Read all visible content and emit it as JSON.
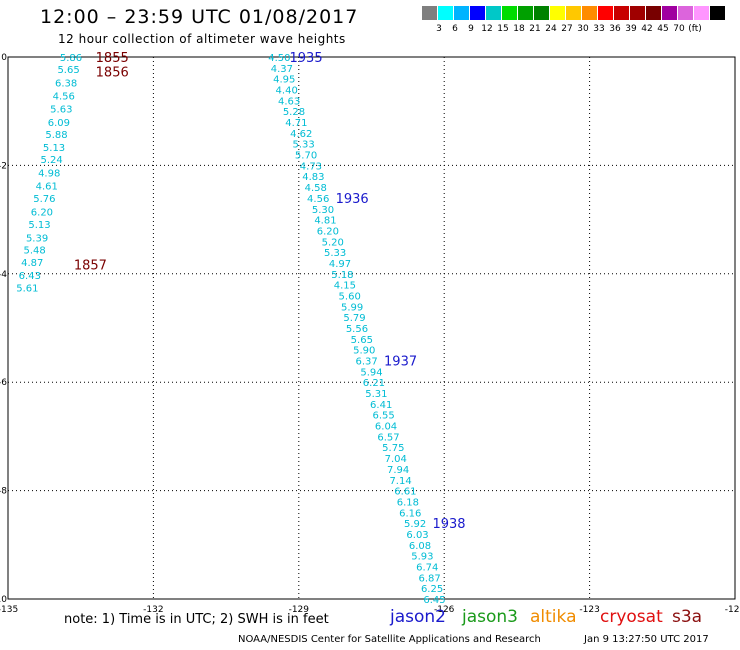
{
  "header": {
    "title": "12:00 – 23:59 UTC 01/08/2017",
    "subtitle": "12 hour collection of altimeter wave heights"
  },
  "colorbar": {
    "colors": [
      "#7f7f7f",
      "#00ffff",
      "#00b4ff",
      "#0000ff",
      "#00c8c8",
      "#00dc00",
      "#00a000",
      "#008200",
      "#ffff00",
      "#ffc800",
      "#ff8c00",
      "#ff0000",
      "#c80000",
      "#a00000",
      "#780000",
      "#a000a0",
      "#dc64dc",
      "#ff96ff",
      "#000000"
    ],
    "labels": [
      "3",
      "6",
      "9",
      "12",
      "15",
      "18",
      "21",
      "24",
      "27",
      "30",
      "33",
      "36",
      "39",
      "42",
      "45",
      "70",
      "(ft)"
    ]
  },
  "chart_data": {
    "type": "scatter",
    "title": "12 hour collection of altimeter wave heights",
    "xlim": [
      -135,
      -120
    ],
    "ylim": [
      -10,
      0
    ],
    "xticks": [
      "-135",
      "-132",
      "-129",
      "-126",
      "-123",
      "-120"
    ],
    "yticks": [
      "0",
      "-2",
      "-4",
      "-6",
      "-8",
      "-10"
    ],
    "grid": true,
    "value_color": "#00bcd4",
    "tracks": [
      {
        "satellite": "altika",
        "points": [
          {
            "lon": -133.7,
            "lat": 0.0,
            "swh": "5.86"
          },
          {
            "lon": -133.75,
            "lat": -0.22,
            "swh": "5.65"
          },
          {
            "lon": -133.8,
            "lat": -0.47,
            "swh": "6.38"
          },
          {
            "lon": -133.85,
            "lat": -0.71,
            "swh": "4.56"
          },
          {
            "lon": -133.9,
            "lat": -0.95,
            "swh": "5.63"
          },
          {
            "lon": -133.95,
            "lat": -1.2,
            "swh": "6.09"
          },
          {
            "lon": -134.0,
            "lat": -1.42,
            "swh": "5.88"
          },
          {
            "lon": -134.05,
            "lat": -1.66,
            "swh": "5.13"
          },
          {
            "lon": -134.1,
            "lat": -1.88,
            "swh": "5.24"
          },
          {
            "lon": -134.15,
            "lat": -2.13,
            "swh": "4.98"
          },
          {
            "lon": -134.2,
            "lat": -2.37,
            "swh": "4.61"
          },
          {
            "lon": -134.25,
            "lat": -2.6,
            "swh": "5.76"
          },
          {
            "lon": -134.3,
            "lat": -2.85,
            "swh": "6.20"
          },
          {
            "lon": -134.35,
            "lat": -3.08,
            "swh": "5.13"
          },
          {
            "lon": -134.4,
            "lat": -3.33,
            "swh": "5.39"
          },
          {
            "lon": -134.45,
            "lat": -3.55,
            "swh": "5.48"
          },
          {
            "lon": -134.5,
            "lat": -3.78,
            "swh": "4.87"
          },
          {
            "lon": -134.55,
            "lat": -4.02,
            "swh": "6.43"
          },
          {
            "lon": -134.6,
            "lat": -4.25,
            "swh": "5.61"
          }
        ],
        "time_labels": [
          {
            "text": "1855",
            "lon": -132.85,
            "lat": 0.0
          },
          {
            "text": "1856",
            "lon": -132.85,
            "lat": -0.27
          },
          {
            "text": "1857",
            "lon": -133.3,
            "lat": -3.83
          }
        ]
      },
      {
        "satellite": "jason2",
        "points": [
          {
            "lon": -129.4,
            "lat": 0.0,
            "swh": "4.50"
          },
          {
            "lon": -129.35,
            "lat": -0.2,
            "swh": "4.37"
          },
          {
            "lon": -129.3,
            "lat": -0.4,
            "swh": "4.95"
          },
          {
            "lon": -129.25,
            "lat": -0.6,
            "swh": "4.40"
          },
          {
            "lon": -129.2,
            "lat": -0.8,
            "swh": "4.63"
          },
          {
            "lon": -129.1,
            "lat": -1.0,
            "swh": "5.28"
          },
          {
            "lon": -129.05,
            "lat": -1.2,
            "swh": "4.71"
          },
          {
            "lon": -128.95,
            "lat": -1.4,
            "swh": "4.62"
          },
          {
            "lon": -128.9,
            "lat": -1.6,
            "swh": "5.33"
          },
          {
            "lon": -128.85,
            "lat": -1.8,
            "swh": "5.70"
          },
          {
            "lon": -128.75,
            "lat": -2.0,
            "swh": "4.73"
          },
          {
            "lon": -128.7,
            "lat": -2.2,
            "swh": "4.83"
          },
          {
            "lon": -128.65,
            "lat": -2.4,
            "swh": "4.58"
          },
          {
            "lon": -128.6,
            "lat": -2.6,
            "swh": "4.56"
          },
          {
            "lon": -128.5,
            "lat": -2.8,
            "swh": "5.30"
          },
          {
            "lon": -128.45,
            "lat": -3.0,
            "swh": "4.81"
          },
          {
            "lon": -128.4,
            "lat": -3.2,
            "swh": "6.20"
          },
          {
            "lon": -128.3,
            "lat": -3.4,
            "swh": "5.20"
          },
          {
            "lon": -128.25,
            "lat": -3.6,
            "swh": "5.33"
          },
          {
            "lon": -128.15,
            "lat": -3.8,
            "swh": "4.97"
          },
          {
            "lon": -128.1,
            "lat": -4.0,
            "swh": "5.18"
          },
          {
            "lon": -128.05,
            "lat": -4.2,
            "swh": "4.15"
          },
          {
            "lon": -127.95,
            "lat": -4.4,
            "swh": "5.60"
          },
          {
            "lon": -127.9,
            "lat": -4.6,
            "swh": "5.99"
          },
          {
            "lon": -127.85,
            "lat": -4.8,
            "swh": "5.79"
          },
          {
            "lon": -127.8,
            "lat": -5.0,
            "swh": "5.56"
          },
          {
            "lon": -127.7,
            "lat": -5.2,
            "swh": "5.65"
          },
          {
            "lon": -127.65,
            "lat": -5.4,
            "swh": "5.90"
          },
          {
            "lon": -127.6,
            "lat": -5.6,
            "swh": "6.37"
          },
          {
            "lon": -127.5,
            "lat": -5.8,
            "swh": "5.94"
          },
          {
            "lon": -127.45,
            "lat": -6.0,
            "swh": "6.21"
          },
          {
            "lon": -127.4,
            "lat": -6.2,
            "swh": "5.31"
          },
          {
            "lon": -127.3,
            "lat": -6.4,
            "swh": "6.41"
          },
          {
            "lon": -127.25,
            "lat": -6.6,
            "swh": "6.55"
          },
          {
            "lon": -127.2,
            "lat": -6.8,
            "swh": "6.04"
          },
          {
            "lon": -127.15,
            "lat": -7.0,
            "swh": "6.57"
          },
          {
            "lon": -127.05,
            "lat": -7.2,
            "swh": "5.75"
          },
          {
            "lon": -127.0,
            "lat": -7.4,
            "swh": "7.04"
          },
          {
            "lon": -126.95,
            "lat": -7.6,
            "swh": "7.94"
          },
          {
            "lon": -126.9,
            "lat": -7.8,
            "swh": "7.14"
          },
          {
            "lon": -126.8,
            "lat": -8.0,
            "swh": "6.61"
          },
          {
            "lon": -126.75,
            "lat": -8.2,
            "swh": "6.18"
          },
          {
            "lon": -126.7,
            "lat": -8.4,
            "swh": "6.16"
          },
          {
            "lon": -126.6,
            "lat": -8.6,
            "swh": "5.92"
          },
          {
            "lon": -126.55,
            "lat": -8.8,
            "swh": "6.03"
          },
          {
            "lon": -126.5,
            "lat": -9.0,
            "swh": "6.08"
          },
          {
            "lon": -126.45,
            "lat": -9.2,
            "swh": "5.93"
          },
          {
            "lon": -126.35,
            "lat": -9.4,
            "swh": "6.74"
          },
          {
            "lon": -126.3,
            "lat": -9.6,
            "swh": "6.87"
          },
          {
            "lon": -126.25,
            "lat": -9.8,
            "swh": "6.25"
          },
          {
            "lon": -126.2,
            "lat": -10.0,
            "swh": "6.45"
          }
        ],
        "time_labels": [
          {
            "text": "1935",
            "lon": -128.85,
            "lat": 0.0
          },
          {
            "text": "1936",
            "lon": -127.9,
            "lat": -2.6
          },
          {
            "text": "1937",
            "lon": -126.9,
            "lat": -5.6
          },
          {
            "text": "1938",
            "lon": -125.9,
            "lat": -8.6
          }
        ]
      }
    ]
  },
  "time_label_colors": {
    "altika": "#7a0000",
    "jason2": "#1a1acc"
  },
  "footer": {
    "note": "note:  1) Time is in UTC;  2) SWH is in feet",
    "legend": [
      {
        "name": "jason2",
        "color": "#1a1acc"
      },
      {
        "name": "jason3",
        "color": "#1a9a1a"
      },
      {
        "name": "altika",
        "color": "#f08c00"
      },
      {
        "name": "cryosat",
        "color": "#e01010"
      },
      {
        "name": "s3a",
        "color": "#8b1010"
      }
    ],
    "credit": "NOAA/NESDIS Center for Satellite Applications and Research",
    "timestamp": "Jan  9 13:27:50 UTC 2017"
  }
}
